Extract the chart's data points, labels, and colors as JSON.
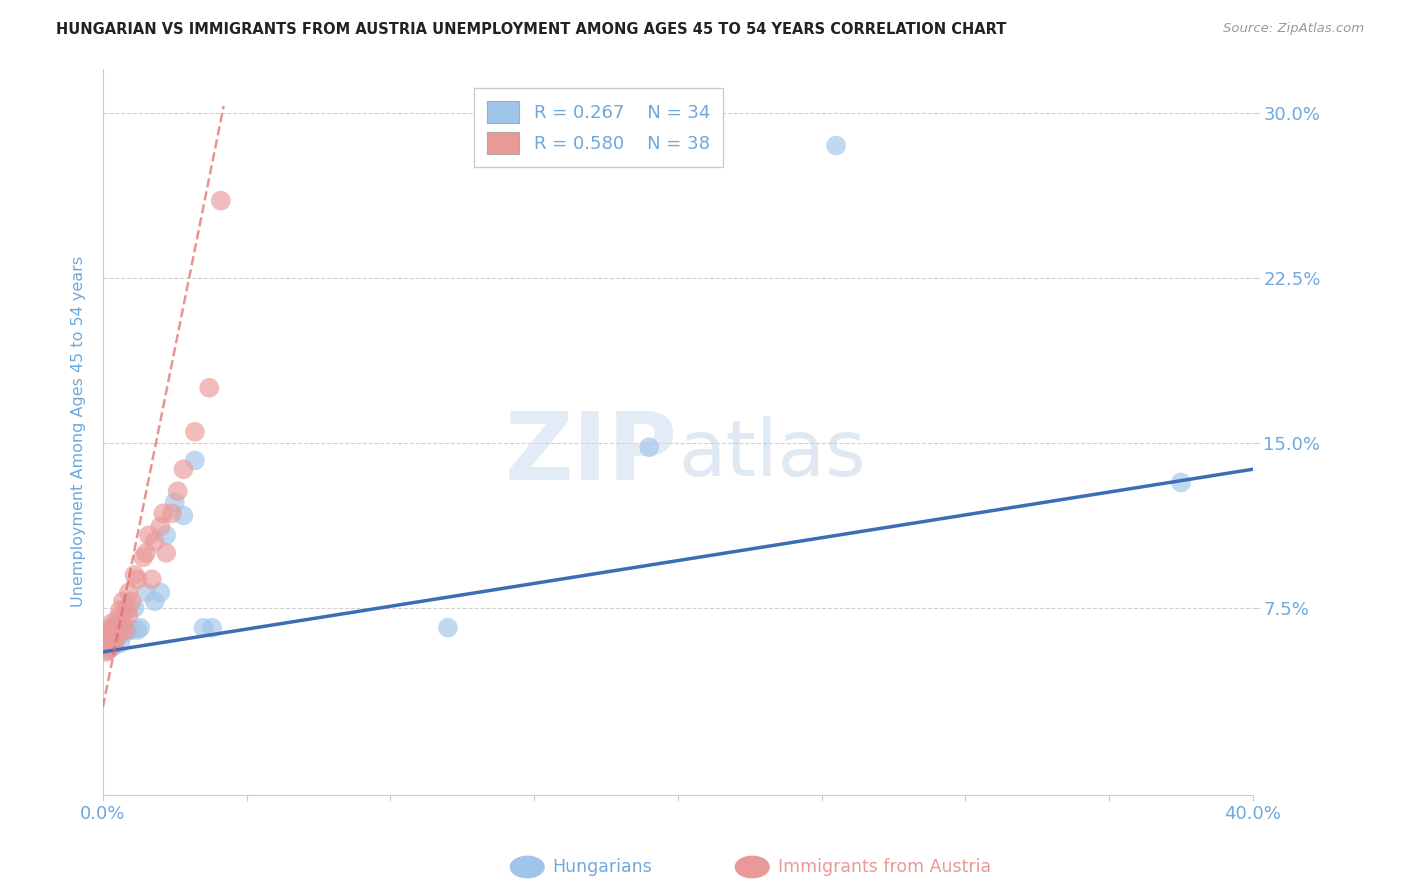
{
  "title": "HUNGARIAN VS IMMIGRANTS FROM AUSTRIA UNEMPLOYMENT AMONG AGES 45 TO 54 YEARS CORRELATION CHART",
  "source": "Source: ZipAtlas.com",
  "ylabel": "Unemployment Among Ages 45 to 54 years",
  "xlim": [
    0.0,
    0.4
  ],
  "ylim": [
    -0.01,
    0.32
  ],
  "xticks": [
    0.0,
    0.05,
    0.1,
    0.15,
    0.2,
    0.25,
    0.3,
    0.35,
    0.4
  ],
  "xticklabels": [
    "0.0%",
    "",
    "",
    "",
    "",
    "",
    "",
    "",
    "40.0%"
  ],
  "yticks": [
    0.075,
    0.15,
    0.225,
    0.3
  ],
  "yticklabels": [
    "7.5%",
    "15.0%",
    "22.5%",
    "30.0%"
  ],
  "background_color": "#ffffff",
  "grid_color": "#d0d0d0",
  "blue_scatter_color": "#9fc5e8",
  "pink_scatter_color": "#ea9999",
  "line_blue_color": "#3d6eb5",
  "line_pink_color": "#e06666",
  "axis_label_color": "#6fa8dc",
  "title_color": "#222222",
  "source_color": "#999999",
  "watermark_color": "#dbe8f5",
  "legend_box_color": "#cccccc",
  "blue_line_start_y": 0.055,
  "blue_line_end_y": 0.138,
  "pink_line_intercept": 0.03,
  "pink_line_slope": 6.5,
  "pink_line_x_max": 0.042,
  "hungarians_x": [
    0.001,
    0.001,
    0.002,
    0.002,
    0.002,
    0.003,
    0.003,
    0.003,
    0.004,
    0.004,
    0.005,
    0.005,
    0.006,
    0.006,
    0.007,
    0.008,
    0.009,
    0.01,
    0.011,
    0.012,
    0.013,
    0.015,
    0.018,
    0.02,
    0.022,
    0.025,
    0.028,
    0.032,
    0.035,
    0.038,
    0.12,
    0.19,
    0.255,
    0.375
  ],
  "hungarians_y": [
    0.058,
    0.063,
    0.056,
    0.061,
    0.065,
    0.057,
    0.062,
    0.066,
    0.058,
    0.063,
    0.062,
    0.067,
    0.059,
    0.064,
    0.065,
    0.064,
    0.075,
    0.065,
    0.075,
    0.065,
    0.066,
    0.082,
    0.078,
    0.082,
    0.108,
    0.123,
    0.117,
    0.142,
    0.066,
    0.066,
    0.066,
    0.148,
    0.285,
    0.132
  ],
  "austria_x": [
    0.001,
    0.001,
    0.001,
    0.002,
    0.002,
    0.002,
    0.003,
    0.003,
    0.003,
    0.004,
    0.004,
    0.005,
    0.005,
    0.006,
    0.006,
    0.007,
    0.007,
    0.008,
    0.008,
    0.009,
    0.009,
    0.01,
    0.011,
    0.012,
    0.014,
    0.015,
    0.016,
    0.017,
    0.018,
    0.02,
    0.021,
    0.022,
    0.024,
    0.026,
    0.028,
    0.032,
    0.037,
    0.041
  ],
  "austria_y": [
    0.055,
    0.058,
    0.062,
    0.056,
    0.06,
    0.065,
    0.058,
    0.063,
    0.068,
    0.059,
    0.065,
    0.062,
    0.07,
    0.065,
    0.074,
    0.068,
    0.078,
    0.065,
    0.074,
    0.072,
    0.082,
    0.078,
    0.09,
    0.088,
    0.098,
    0.1,
    0.108,
    0.088,
    0.105,
    0.112,
    0.118,
    0.1,
    0.118,
    0.128,
    0.138,
    0.155,
    0.175,
    0.26
  ]
}
